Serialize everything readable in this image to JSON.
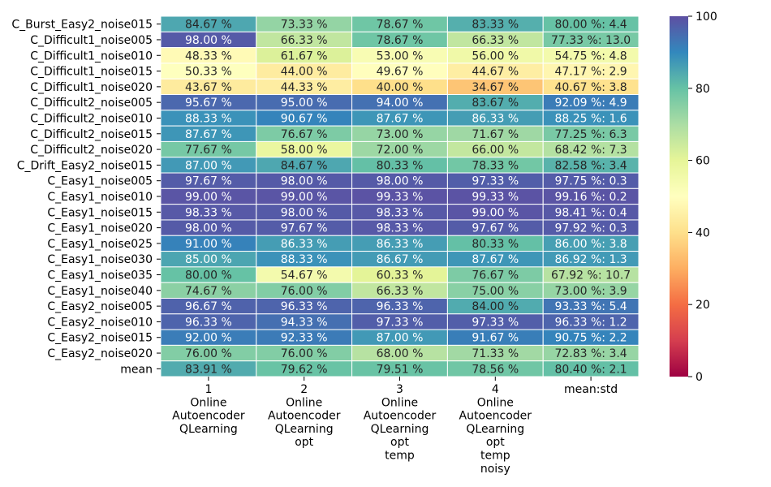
{
  "chart_data": {
    "type": "heatmap",
    "title": "",
    "xlabel": "",
    "ylabel": "",
    "rows": [
      "C_Burst_Easy2_noise015",
      "C_Difficult1_noise005",
      "C_Difficult1_noise010",
      "C_Difficult1_noise015",
      "C_Difficult1_noise020",
      "C_Difficult2_noise005",
      "C_Difficult2_noise010",
      "C_Difficult2_noise015",
      "C_Difficult2_noise020",
      "C_Drift_Easy2_noise015",
      "C_Easy1_noise005",
      "C_Easy1_noise010",
      "C_Easy1_noise015",
      "C_Easy1_noise020",
      "C_Easy1_noise025",
      "C_Easy1_noise030",
      "C_Easy1_noise035",
      "C_Easy1_noise040",
      "C_Easy2_noise005",
      "C_Easy2_noise010",
      "C_Easy2_noise015",
      "C_Easy2_noise020",
      "mean"
    ],
    "columns": [
      [
        "1",
        "Online",
        "Autoencoder",
        "QLearning"
      ],
      [
        "2",
        "Online",
        "Autoencoder",
        "QLearning",
        "opt"
      ],
      [
        "3",
        "Online",
        "Autoencoder",
        "QLearning",
        "opt",
        "temp"
      ],
      [
        "4",
        "Online",
        "Autoencoder",
        "QLearning",
        "opt",
        "temp",
        "noisy"
      ],
      [
        "mean:std"
      ]
    ],
    "values": [
      [
        84.67,
        73.33,
        78.67,
        83.33,
        80.0
      ],
      [
        98.0,
        66.33,
        78.67,
        66.33,
        77.33
      ],
      [
        48.33,
        61.67,
        53.0,
        56.0,
        54.75
      ],
      [
        50.33,
        44.0,
        49.67,
        44.67,
        47.17
      ],
      [
        43.67,
        44.33,
        40.0,
        34.67,
        40.67
      ],
      [
        95.67,
        95.0,
        94.0,
        83.67,
        92.09
      ],
      [
        88.33,
        90.67,
        87.67,
        86.33,
        88.25
      ],
      [
        87.67,
        76.67,
        73.0,
        71.67,
        77.25
      ],
      [
        77.67,
        58.0,
        72.0,
        66.0,
        68.42
      ],
      [
        87.0,
        84.67,
        80.33,
        78.33,
        82.58
      ],
      [
        97.67,
        98.0,
        98.0,
        97.33,
        97.75
      ],
      [
        99.0,
        99.0,
        99.33,
        99.33,
        99.16
      ],
      [
        98.33,
        98.0,
        98.33,
        99.0,
        98.41
      ],
      [
        98.0,
        97.67,
        98.33,
        97.67,
        97.92
      ],
      [
        91.0,
        86.33,
        86.33,
        80.33,
        86.0
      ],
      [
        85.0,
        88.33,
        86.67,
        87.67,
        86.92
      ],
      [
        80.0,
        54.67,
        60.33,
        76.67,
        67.92
      ],
      [
        74.67,
        76.0,
        66.33,
        75.0,
        73.0
      ],
      [
        96.67,
        96.33,
        96.33,
        84.0,
        93.33
      ],
      [
        96.33,
        94.33,
        97.33,
        97.33,
        96.33
      ],
      [
        92.0,
        92.33,
        87.0,
        91.67,
        90.75
      ],
      [
        76.0,
        76.0,
        68.0,
        71.33,
        72.83
      ],
      [
        83.91,
        79.62,
        79.51,
        78.56,
        80.4
      ]
    ],
    "labels": [
      [
        "84.67 %",
        "73.33 %",
        "78.67 %",
        "83.33 %",
        "80.00 %: 4.4"
      ],
      [
        "98.00 %",
        "66.33 %",
        "78.67 %",
        "66.33 %",
        "77.33 %: 13.0"
      ],
      [
        "48.33 %",
        "61.67 %",
        "53.00 %",
        "56.00 %",
        "54.75 %: 4.8"
      ],
      [
        "50.33 %",
        "44.00 %",
        "49.67 %",
        "44.67 %",
        "47.17 %: 2.9"
      ],
      [
        "43.67 %",
        "44.33 %",
        "40.00 %",
        "34.67 %",
        "40.67 %: 3.8"
      ],
      [
        "95.67 %",
        "95.00 %",
        "94.00 %",
        "83.67 %",
        "92.09 %: 4.9"
      ],
      [
        "88.33 %",
        "90.67 %",
        "87.67 %",
        "86.33 %",
        "88.25 %: 1.6"
      ],
      [
        "87.67 %",
        "76.67 %",
        "73.00 %",
        "71.67 %",
        "77.25 %: 6.3"
      ],
      [
        "77.67 %",
        "58.00 %",
        "72.00 %",
        "66.00 %",
        "68.42 %: 7.3"
      ],
      [
        "87.00 %",
        "84.67 %",
        "80.33 %",
        "78.33 %",
        "82.58 %: 3.4"
      ],
      [
        "97.67 %",
        "98.00 %",
        "98.00 %",
        "97.33 %",
        "97.75 %: 0.3"
      ],
      [
        "99.00 %",
        "99.00 %",
        "99.33 %",
        "99.33 %",
        "99.16 %: 0.2"
      ],
      [
        "98.33 %",
        "98.00 %",
        "98.33 %",
        "99.00 %",
        "98.41 %: 0.4"
      ],
      [
        "98.00 %",
        "97.67 %",
        "98.33 %",
        "97.67 %",
        "97.92 %: 0.3"
      ],
      [
        "91.00 %",
        "86.33 %",
        "86.33 %",
        "80.33 %",
        "86.00 %: 3.8"
      ],
      [
        "85.00 %",
        "88.33 %",
        "86.67 %",
        "87.67 %",
        "86.92 %: 1.3"
      ],
      [
        "80.00 %",
        "54.67 %",
        "60.33 %",
        "76.67 %",
        "67.92 %: 10.7"
      ],
      [
        "74.67 %",
        "76.00 %",
        "66.33 %",
        "75.00 %",
        "73.00 %: 3.9"
      ],
      [
        "96.67 %",
        "96.33 %",
        "96.33 %",
        "84.00 %",
        "93.33 %: 5.4"
      ],
      [
        "96.33 %",
        "94.33 %",
        "97.33 %",
        "97.33 %",
        "96.33 %: 1.2"
      ],
      [
        "92.00 %",
        "92.33 %",
        "87.00 %",
        "91.67 %",
        "90.75 %: 2.2"
      ],
      [
        "76.00 %",
        "76.00 %",
        "68.00 %",
        "71.33 %",
        "72.83 %: 3.4"
      ],
      [
        "83.91 %",
        "79.62 %",
        "79.51 %",
        "78.56 %",
        "80.40 %: 2.1"
      ]
    ],
    "colorbar": {
      "range": [
        0,
        100
      ],
      "ticks": [
        "0",
        "20",
        "40",
        "60",
        "80",
        "100"
      ],
      "colormap": "Spectral"
    },
    "grid": false,
    "legend": "colorbar-right"
  }
}
